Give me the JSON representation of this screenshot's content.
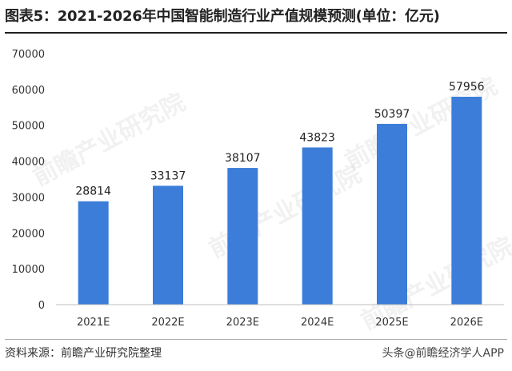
{
  "header": {
    "title": "图表5：2021-2026年中国智能制造行业产值规模预测(单位：亿元)"
  },
  "footer": {
    "source": "资料来源：前瞻产业研究院整理",
    "credit": "头条@前瞻经济学人APP"
  },
  "watermark": {
    "text": "前瞻产业研究院"
  },
  "colors": {
    "bar": "#3b7dd8",
    "axis": "#bfbfbf",
    "text": "#333333"
  },
  "chart_data": {
    "type": "bar",
    "categories": [
      "2021E",
      "2022E",
      "2023E",
      "2024E",
      "2025E",
      "2026E"
    ],
    "values": [
      28814,
      33137,
      38107,
      43823,
      50397,
      57956
    ],
    "title": "",
    "xlabel": "",
    "ylabel": "",
    "ylim": [
      0,
      70000
    ],
    "yticks": [
      0,
      10000,
      20000,
      30000,
      40000,
      50000,
      60000,
      70000
    ],
    "grid": false,
    "legend": "none",
    "data_labels": true
  }
}
